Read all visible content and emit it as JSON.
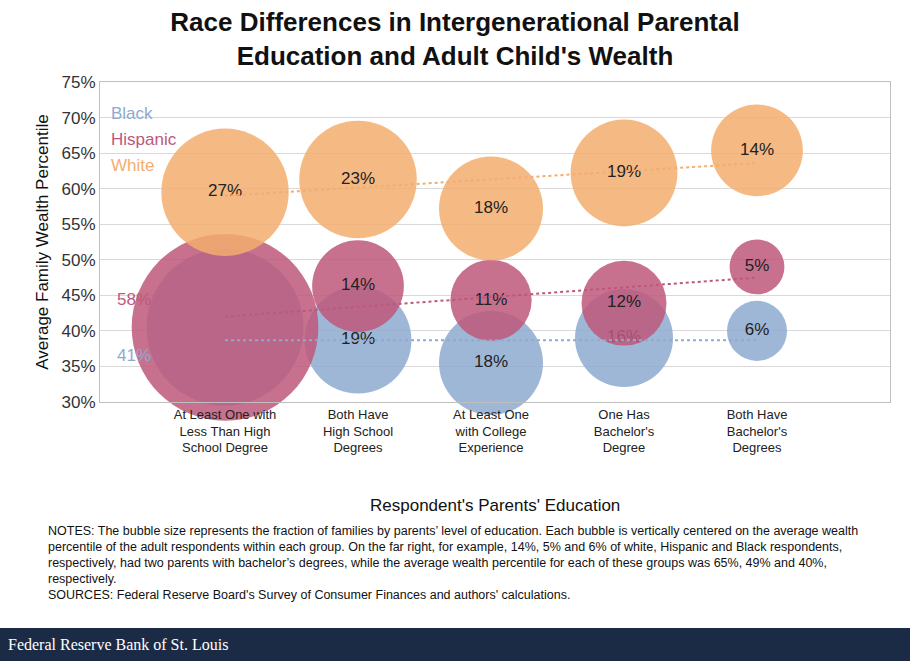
{
  "chart_data": {
    "type": "bubble",
    "title": "Race Differences in Intergenerational Parental\nEducation and Adult Child's Wealth",
    "x_label": "Respondent's Parents' Education",
    "y_label": "Average Family Wealth Percentile",
    "categories": [
      "At Least One with\nLess Than High\nSchool Degree",
      "Both Have\nHigh School\nDegrees",
      "At Least One\nwith College\nExperience",
      "One Has\nBachelor's\nDegree",
      "Both Have\nBachelor's\nDegrees"
    ],
    "series": [
      {
        "name": "Black",
        "color": "#8eaad0",
        "values": [
          40.5,
          38.7,
          35.5,
          39.0,
          40.0
        ],
        "sizes": [
          41,
          19,
          18,
          16,
          6
        ],
        "size_labels": [
          "41%",
          "19%",
          "18%",
          "16%",
          "6%"
        ],
        "trend": [
          38.7,
          38.7
        ]
      },
      {
        "name": "Hispanic",
        "color": "#bd587b",
        "values": [
          40.5,
          46.3,
          44.3,
          43.9,
          49.0
        ],
        "sizes": [
          58,
          14,
          11,
          12,
          5
        ],
        "size_labels": [
          "58%",
          "14%",
          "11%",
          "12%",
          "5%"
        ],
        "trend": [
          42.0,
          47.5
        ]
      },
      {
        "name": "White",
        "color": "#f3ad6e",
        "values": [
          59.5,
          61.3,
          57.2,
          62.2,
          65.4
        ],
        "sizes": [
          27,
          23,
          18,
          19,
          14
        ],
        "size_labels": [
          "27%",
          "23%",
          "18%",
          "19%",
          "14%"
        ],
        "trend": [
          59.0,
          63.6
        ]
      }
    ],
    "ylim": [
      30,
      75
    ],
    "yticks": [
      {
        "value": 30,
        "label": "30%"
      },
      {
        "value": 35,
        "label": "35%"
      },
      {
        "value": 40,
        "label": "40%"
      },
      {
        "value": 45,
        "label": "45%"
      },
      {
        "value": 50,
        "label": "50%"
      },
      {
        "value": 55,
        "label": "55%"
      },
      {
        "value": 60,
        "label": "60%"
      },
      {
        "value": 65,
        "label": "65%"
      },
      {
        "value": 70,
        "label": "70%"
      },
      {
        "value": 75,
        "label": "75%"
      }
    ],
    "grid": true,
    "legend": "top-left",
    "data_labels": true,
    "notes": "NOTES: The bubble size represents the fraction of families by parents’ level of education. Each bubble is vertically centered on the average wealth percentile of the adult respondents within each group. On the far right, for example, 14%, 5% and 6% of white, Hispanic and Black respondents, respectively, had two parents with bachelor’s degrees, while the average wealth percentile for each of these groups was 65%, 49% and 40%, respectively.",
    "sources": "SOURCES: Federal Reserve Board's Survey of Consumer Finances and authors' calculations.",
    "footer": "Federal Reserve Bank of St. Louis"
  }
}
